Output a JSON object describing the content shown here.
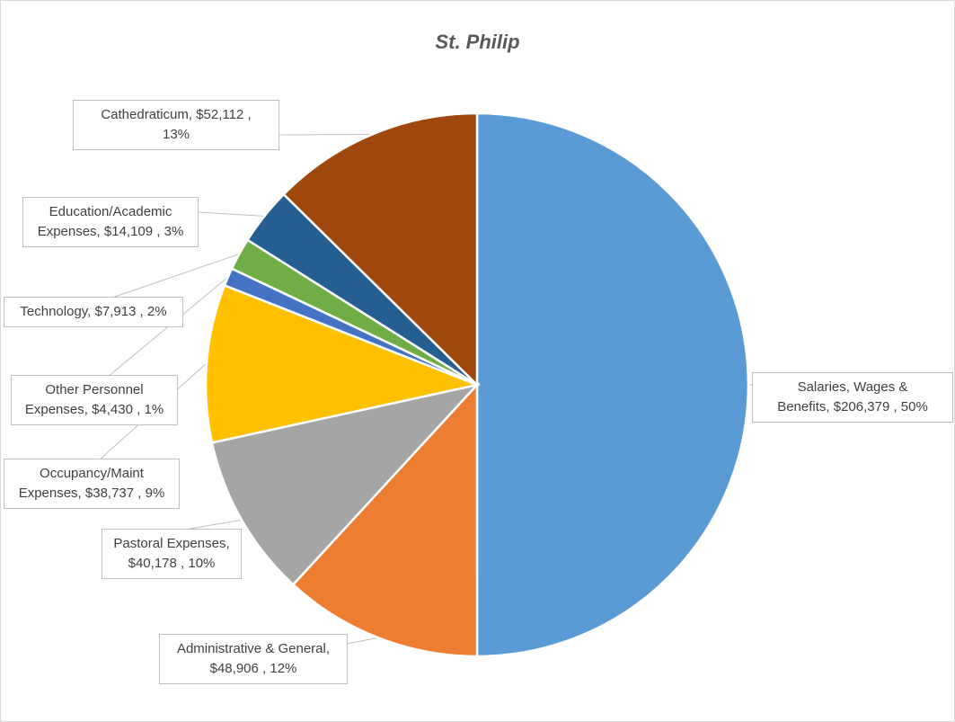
{
  "chart_data": {
    "type": "pie",
    "title": "St. Philip",
    "slices": [
      {
        "name": "Salaries, Wages & Benefits",
        "value": 206379,
        "percent": 50,
        "color": "#5b9bd5",
        "label_lines": [
          "Salaries, Wages &",
          "Benefits,  $206,379 , 50%"
        ]
      },
      {
        "name": "Administrative & General",
        "value": 48906,
        "percent": 12,
        "color": "#ed7d31",
        "label_lines": [
          "Administrative & General,",
          "$48,906 , 12%"
        ]
      },
      {
        "name": "Pastoral Expenses",
        "value": 40178,
        "percent": 10,
        "color": "#a5a5a5",
        "label_lines": [
          "Pastoral Expenses,",
          "$40,178 , 10%"
        ]
      },
      {
        "name": "Occupancy/Maint Expenses",
        "value": 38737,
        "percent": 9,
        "color": "#ffc000",
        "label_lines": [
          "Occupancy/Maint",
          "Expenses,  $38,737 , 9%"
        ]
      },
      {
        "name": "Other Personnel Expenses",
        "value": 4430,
        "percent": 1,
        "color": "#4472c4",
        "label_lines": [
          "Other Personnel",
          "Expenses,  $4,430 , 1%"
        ]
      },
      {
        "name": "Technology",
        "value": 7913,
        "percent": 2,
        "color": "#70ad47",
        "label_lines": [
          "Technology,  $7,913 , 2%"
        ]
      },
      {
        "name": "Education/Academic Expenses",
        "value": 14109,
        "percent": 3,
        "color": "#255e91",
        "label_lines": [
          "Education/Academic",
          "Expenses,  $14,109 , 3%"
        ]
      },
      {
        "name": "Cathedraticum",
        "value": 52112,
        "percent": 13,
        "color": "#9e480e",
        "label_lines": [
          "Cathedraticum,  $52,112 ,",
          "13%"
        ]
      }
    ],
    "legend": "none",
    "data_labels": "outside-callout"
  }
}
